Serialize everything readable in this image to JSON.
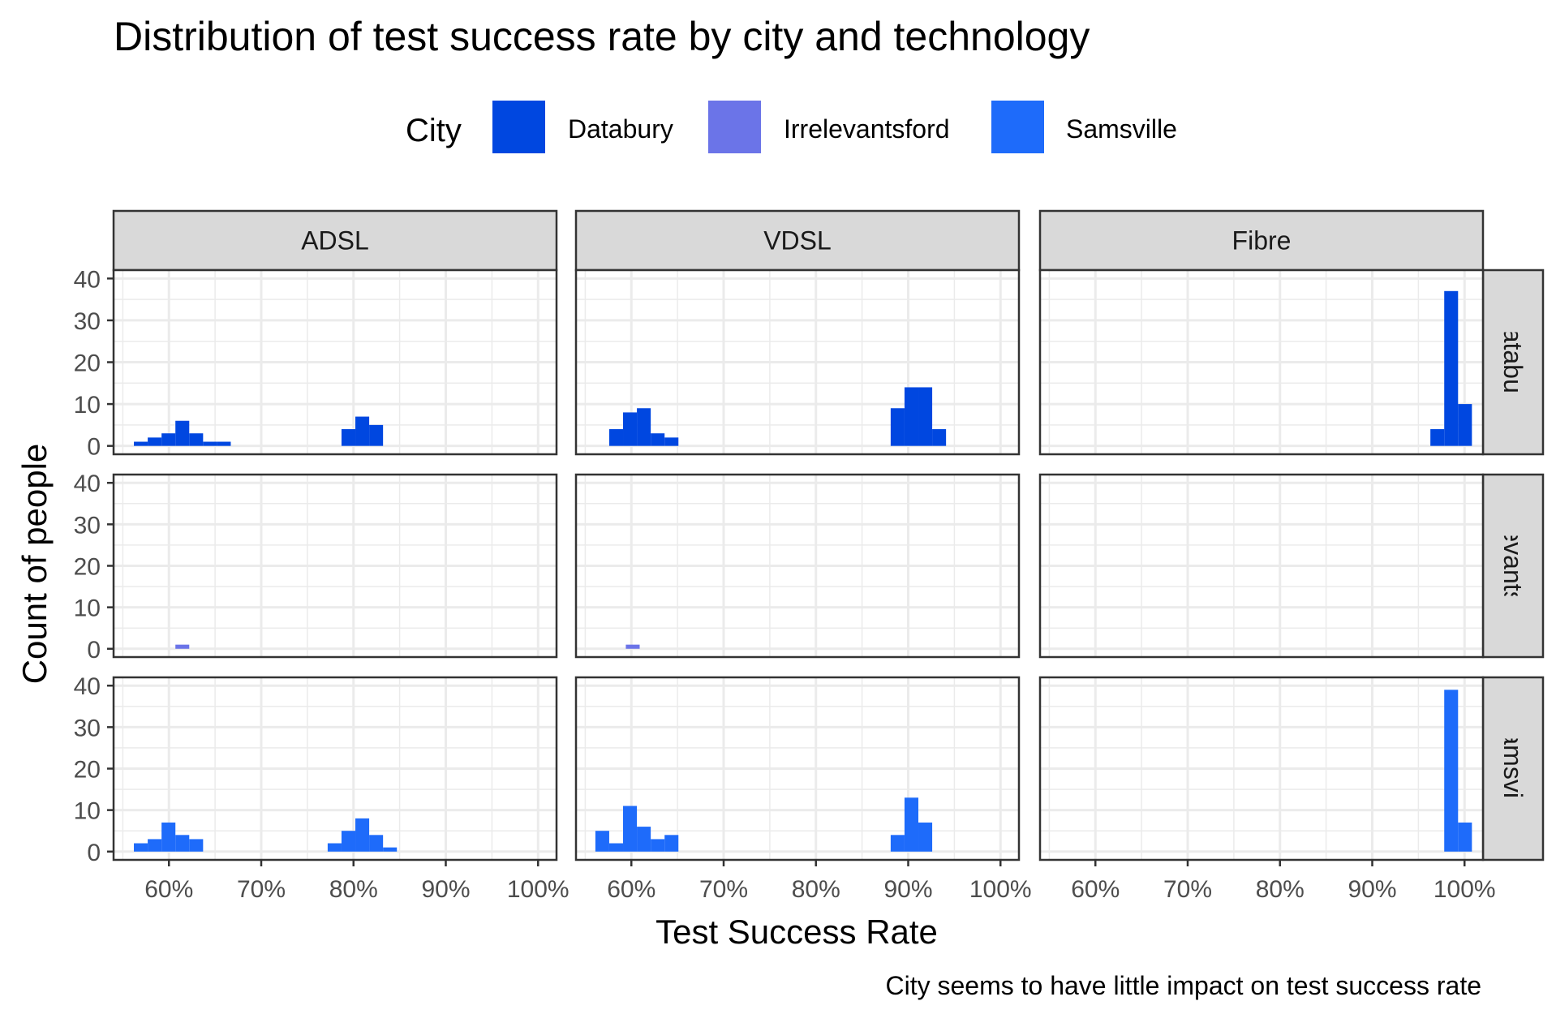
{
  "chart_data": {
    "type": "bar",
    "title": "Distribution of test success rate by city and technology",
    "xlabel": "Test Success Rate",
    "ylabel": "Count of people",
    "caption": "City seems to have little impact on test success rate",
    "legend": {
      "title": "City",
      "position": "top",
      "items": [
        {
          "name": "Databury",
          "color": "#0047e0"
        },
        {
          "name": "Irrelevantsford",
          "color": "#6b74e8"
        },
        {
          "name": "Samsville",
          "color": "#1e6bfa"
        }
      ]
    },
    "columns": [
      "ADSL",
      "VDSL",
      "Fibre"
    ],
    "rows": [
      "Databury",
      "Irrelevantsford",
      "Samsville"
    ],
    "xlim": [
      54,
      102
    ],
    "ylim": [
      -2,
      42
    ],
    "x_ticks": [
      60,
      70,
      80,
      90,
      100
    ],
    "x_tick_labels": [
      "60%",
      "70%",
      "80%",
      "90%",
      "100%"
    ],
    "y_ticks": [
      0,
      10,
      20,
      30,
      40
    ],
    "y_tick_labels": [
      "0",
      "10",
      "20",
      "30",
      "40"
    ],
    "bin_width": 1.5,
    "grid": true,
    "panels": [
      {
        "column": "ADSL",
        "row": "Databury",
        "bins": [
          [
            56.2,
            1
          ],
          [
            57.7,
            2
          ],
          [
            59.2,
            3
          ],
          [
            60.7,
            6
          ],
          [
            62.2,
            3
          ],
          [
            63.7,
            1
          ],
          [
            65.2,
            1
          ],
          [
            78.7,
            4
          ],
          [
            80.2,
            7
          ],
          [
            81.7,
            5
          ]
        ]
      },
      {
        "column": "VDSL",
        "row": "Databury",
        "bins": [
          [
            57.6,
            4
          ],
          [
            59.1,
            8
          ],
          [
            60.6,
            9
          ],
          [
            62.1,
            3
          ],
          [
            63.6,
            2
          ],
          [
            88.1,
            9
          ],
          [
            89.6,
            14
          ],
          [
            91.1,
            14
          ],
          [
            92.6,
            4
          ]
        ]
      },
      {
        "column": "Fibre",
        "row": "Databury",
        "bins": [
          [
            96.3,
            4
          ],
          [
            97.8,
            37
          ],
          [
            99.3,
            10
          ]
        ]
      },
      {
        "column": "ADSL",
        "row": "Irrelevantsford",
        "bins": [
          [
            60.7,
            1
          ]
        ]
      },
      {
        "column": "VDSL",
        "row": "Irrelevantsford",
        "bins": [
          [
            59.4,
            1
          ]
        ]
      },
      {
        "column": "Fibre",
        "row": "Irrelevantsford",
        "bins": []
      },
      {
        "column": "ADSL",
        "row": "Samsville",
        "bins": [
          [
            56.2,
            2
          ],
          [
            57.7,
            3
          ],
          [
            59.2,
            7
          ],
          [
            60.7,
            4
          ],
          [
            62.2,
            3
          ],
          [
            77.2,
            2
          ],
          [
            78.7,
            5
          ],
          [
            80.2,
            8
          ],
          [
            81.7,
            4
          ],
          [
            83.2,
            1
          ]
        ]
      },
      {
        "column": "VDSL",
        "row": "Samsville",
        "bins": [
          [
            56.1,
            5
          ],
          [
            57.6,
            2
          ],
          [
            59.1,
            11
          ],
          [
            60.6,
            6
          ],
          [
            62.1,
            3
          ],
          [
            63.6,
            4
          ],
          [
            88.1,
            4
          ],
          [
            89.6,
            13
          ],
          [
            91.1,
            7
          ]
        ]
      },
      {
        "column": "Fibre",
        "row": "Samsville",
        "bins": [
          [
            97.8,
            39
          ],
          [
            99.3,
            7
          ]
        ]
      }
    ]
  }
}
